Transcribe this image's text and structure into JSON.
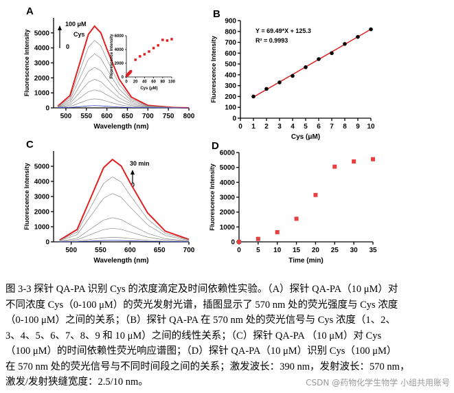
{
  "chart_data": [
    {
      "type": "line",
      "panel": "A",
      "x": [
        480,
        510,
        540,
        555,
        570,
        585,
        600,
        630,
        660,
        700,
        760,
        800
      ],
      "series": [
        {
          "color": "#e02020",
          "values": [
            109,
            818,
            3543,
            4905,
            5450,
            5014,
            3924,
            1908,
            709,
            164,
            27,
            0
          ]
        },
        {
          "color": "#8a8a8a",
          "values": [
            90,
            675,
            2925,
            4050,
            4500,
            4140,
            3240,
            1575,
            585,
            135,
            23,
            0
          ]
        },
        {
          "color": "#8a8a8a",
          "values": [
            72,
            540,
            2340,
            3240,
            3600,
            3312,
            2592,
            1260,
            468,
            108,
            18,
            0
          ]
        },
        {
          "color": "#8a8a8a",
          "values": [
            54,
            405,
            1755,
            2430,
            2700,
            2484,
            1944,
            945,
            351,
            81,
            14,
            0
          ]
        },
        {
          "color": "#8a8a8a",
          "values": [
            38,
            285,
            1235,
            1710,
            1900,
            1748,
            1368,
            665,
            247,
            57,
            10,
            0
          ]
        },
        {
          "color": "#8a8a8a",
          "values": [
            24,
            180,
            780,
            1080,
            1200,
            1104,
            864,
            420,
            156,
            36,
            6,
            0
          ]
        },
        {
          "color": "#8a8a8a",
          "values": [
            12,
            90,
            390,
            540,
            600,
            552,
            432,
            210,
            78,
            18,
            3,
            0
          ]
        },
        {
          "color": "#2030c0",
          "values": [
            3,
            23,
            98,
            135,
            150,
            138,
            108,
            53,
            20,
            5,
            1,
            0
          ]
        }
      ],
      "xlim": [
        470,
        800
      ],
      "xticks": [
        500,
        550,
        600,
        650,
        700,
        750,
        800
      ],
      "ylim": [
        0,
        6000
      ],
      "yticks": [
        0,
        1000,
        2000,
        3000,
        4000,
        5000
      ],
      "xlabel": "Wavelength (nm)",
      "ylabel": "Fluorescence Intensity",
      "annotations": [
        "100 μM",
        "Cys",
        "0"
      ]
    },
    {
      "type": "scatter",
      "marker": "square",
      "color": "#e02020",
      "x": [
        1,
        2,
        3,
        4,
        5,
        6,
        7,
        8,
        9,
        10,
        20,
        30,
        40,
        50,
        60,
        70,
        80,
        90,
        100
      ],
      "values": [
        200,
        270,
        330,
        390,
        470,
        545,
        600,
        690,
        750,
        820,
        2500,
        3000,
        3300,
        3700,
        4200,
        4600,
        5400,
        5300,
        5500
      ],
      "xlim": [
        0,
        100
      ],
      "xticks": [
        0,
        20,
        40,
        60,
        80,
        100
      ],
      "ylim": [
        0,
        6000
      ],
      "yticks": [
        0,
        2000,
        4000,
        6000
      ],
      "xlabel": "Cys (μM)",
      "ylabel": "Fluorescence Intensity"
    },
    {
      "type": "scatter",
      "panel": "B",
      "marker": "circle",
      "color": "#000000",
      "x": [
        1,
        2,
        3,
        4,
        5,
        6,
        7,
        8,
        9,
        10
      ],
      "values": [
        200,
        270,
        330,
        390,
        470,
        545,
        600,
        685,
        750,
        820
      ],
      "fit": {
        "slope": 69.49,
        "intercept": 125.3,
        "color": "#e02020",
        "label": "Y = 69.49*X + 125.3",
        "r2_label": "R² = 0.9993"
      },
      "xlim": [
        0,
        10
      ],
      "xticks": [
        0,
        1,
        2,
        3,
        4,
        5,
        6,
        7,
        8,
        9,
        10
      ],
      "ylim": [
        0,
        900
      ],
      "yticks": [
        0,
        100,
        200,
        300,
        400,
        500,
        600,
        700,
        800,
        900
      ],
      "xlabel": "Cys (μM)",
      "ylabel": "Fluorescence Intensity"
    },
    {
      "type": "line",
      "panel": "C",
      "x": [
        480,
        510,
        540,
        555,
        570,
        585,
        600,
        630,
        660,
        700
      ],
      "series": [
        {
          "color": "#e02020",
          "values": [
            109,
            818,
            3543,
            4905,
            5450,
            5014,
            3924,
            1908,
            709,
            164
          ]
        },
        {
          "color": "#8a8a8a",
          "values": [
            86,
            645,
            2795,
            3870,
            4300,
            3956,
            3096,
            1505,
            559,
            129
          ]
        },
        {
          "color": "#8a8a8a",
          "values": [
            64,
            480,
            2080,
            2880,
            3200,
            2944,
            2304,
            1120,
            416,
            96
          ]
        },
        {
          "color": "#8a8a8a",
          "values": [
            32,
            240,
            1040,
            1440,
            1600,
            1472,
            1152,
            560,
            208,
            48
          ]
        },
        {
          "color": "#8a8a8a",
          "values": [
            18,
            135,
            585,
            810,
            900,
            828,
            648,
            315,
            117,
            27
          ]
        },
        {
          "color": "#8a8a8a",
          "values": [
            6,
            45,
            195,
            270,
            300,
            276,
            216,
            105,
            39,
            9
          ]
        },
        {
          "color": "#2030c0",
          "values": [
            2,
            15,
            65,
            90,
            100,
            92,
            72,
            35,
            13,
            3
          ]
        }
      ],
      "xlim": [
        470,
        700
      ],
      "xticks": [
        500,
        550,
        600,
        650,
        700
      ],
      "ylim": [
        0,
        6000
      ],
      "yticks": [
        0,
        1000,
        2000,
        3000,
        4000,
        5000
      ],
      "xlabel": "Wavelength (nm)",
      "ylabel": "Fluorescence Intensity",
      "annotations": [
        "30 min",
        "0"
      ]
    },
    {
      "type": "scatter",
      "panel": "D",
      "marker": "square",
      "color": "#e84040",
      "x": [
        0,
        5,
        10,
        15,
        20,
        25,
        30,
        35
      ],
      "values": [
        0,
        200,
        650,
        1550,
        3150,
        5050,
        5400,
        5550
      ],
      "xlim": [
        0,
        35
      ],
      "xticks": [
        0,
        5,
        10,
        15,
        20,
        25,
        30,
        35
      ],
      "ylim": [
        0,
        6000
      ],
      "yticks": [
        0,
        1000,
        2000,
        3000,
        4000,
        5000,
        6000
      ],
      "xlabel": "Time (min)",
      "ylabel": "Fluorescence Intensity"
    }
  ],
  "caption": [
    "图 3-3 探针 QA-PA 识别 Cys 的浓度滴定及时间依赖性实验。（A）探针 QA-PA（10 μM）对",
    "不同浓度 Cys（0-100 μM）的荧光发射光谱，插图显示了 570 nm 处的荧光强度与 Cys 浓度",
    "（0-100 μM）之间的关系；（B）探针 QA-PA 在 570 nm 处的荧光信号与 Cys 浓度（1、2、",
    "3、4、5、6、7、8、9 和 10 μM）之间的线性关系；（C）探针 QA-PA （10 μM）对 Cys",
    "（100 μM）的时间依赖性荧光响应谱图；（D）探针 QA-PA（10 μM）识别 Cys（100 μM）",
    "在 570 nm 处的荧光信号与不同时间段之间的关系；激发波长：390 nm，发射波长：570 nm，",
    "激发/发射狭缝宽度：2.5/10 nm。"
  ],
  "watermark": "CSDN @药物化学生物学 小组共用账号"
}
